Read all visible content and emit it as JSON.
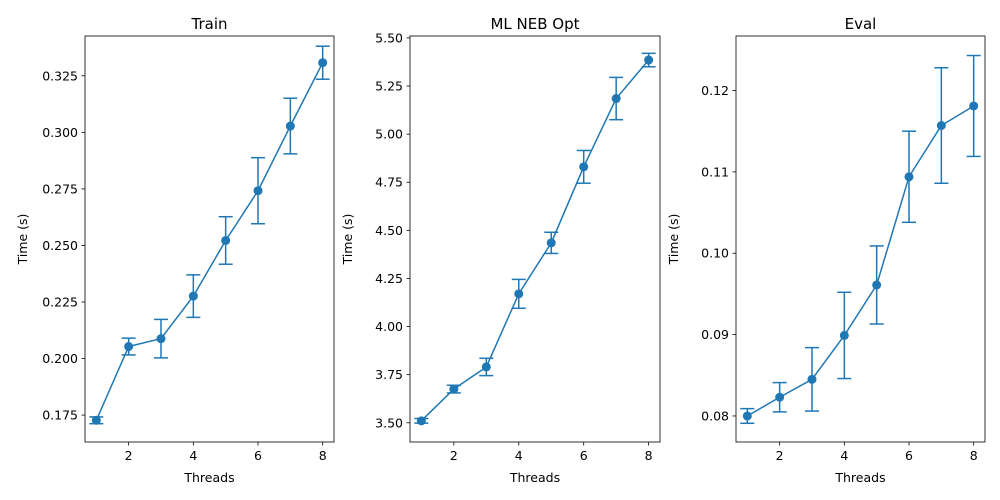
{
  "chart_data": [
    {
      "type": "line",
      "title": "Train",
      "xlabel": "Threads",
      "ylabel": "Time (s)",
      "x": [
        1,
        2,
        3,
        4,
        5,
        6,
        7,
        8
      ],
      "y": [
        0.1727,
        0.2053,
        0.2088,
        0.2276,
        0.2522,
        0.2742,
        0.3028,
        0.3308
      ],
      "yerr": [
        0.0015,
        0.0037,
        0.0085,
        0.0094,
        0.0105,
        0.0146,
        0.0123,
        0.0073
      ],
      "xlim": [
        0.65,
        8.35
      ],
      "ylim": [
        0.1631,
        0.3426
      ],
      "xticks": [
        2,
        4,
        6,
        8
      ],
      "xtick_labels": [
        "2",
        "4",
        "6",
        "8"
      ],
      "yticks": [
        0.175,
        0.2,
        0.225,
        0.25,
        0.275,
        0.3,
        0.325
      ],
      "ytick_labels": [
        "0.175",
        "0.200",
        "0.225",
        "0.250",
        "0.275",
        "0.300",
        "0.325"
      ],
      "color": "#1f77b4",
      "grid": false
    },
    {
      "type": "line",
      "title": "ML NEB Opt",
      "xlabel": "Threads",
      "ylabel": "Time (s)",
      "x": [
        1,
        2,
        3,
        4,
        5,
        6,
        7,
        8
      ],
      "y": [
        3.51,
        3.675,
        3.79,
        4.17,
        4.435,
        4.83,
        5.185,
        5.385
      ],
      "yerr": [
        0.012,
        0.02,
        0.045,
        0.075,
        0.055,
        0.085,
        0.11,
        0.035
      ],
      "xlim": [
        0.65,
        8.35
      ],
      "ylim": [
        3.4,
        5.51
      ],
      "xticks": [
        2,
        4,
        6,
        8
      ],
      "xtick_labels": [
        "2",
        "4",
        "6",
        "8"
      ],
      "yticks": [
        3.5,
        3.75,
        4.0,
        4.25,
        4.5,
        4.75,
        5.0,
        5.25,
        5.5
      ],
      "ytick_labels": [
        "3.50",
        "3.75",
        "4.00",
        "4.25",
        "4.50",
        "4.75",
        "5.00",
        "5.25",
        "5.50"
      ],
      "color": "#1f77b4",
      "grid": false
    },
    {
      "type": "line",
      "title": "Eval",
      "xlabel": "Threads",
      "ylabel": "Time (s)",
      "x": [
        1,
        2,
        3,
        4,
        5,
        6,
        7,
        8
      ],
      "y": [
        0.08,
        0.0823,
        0.0845,
        0.0899,
        0.0961,
        0.1094,
        0.1157,
        0.1181
      ],
      "yerr": [
        0.0009,
        0.0018,
        0.0039,
        0.0053,
        0.0048,
        0.0056,
        0.0071,
        0.0062
      ],
      "xlim": [
        0.65,
        8.35
      ],
      "ylim": [
        0.0768,
        0.1267
      ],
      "xticks": [
        2,
        4,
        6,
        8
      ],
      "xtick_labels": [
        "2",
        "4",
        "6",
        "8"
      ],
      "yticks": [
        0.08,
        0.09,
        0.1,
        0.11,
        0.12
      ],
      "ytick_labels": [
        "0.08",
        "0.09",
        "0.10",
        "0.11",
        "0.12"
      ],
      "color": "#1f77b4",
      "grid": false
    }
  ]
}
